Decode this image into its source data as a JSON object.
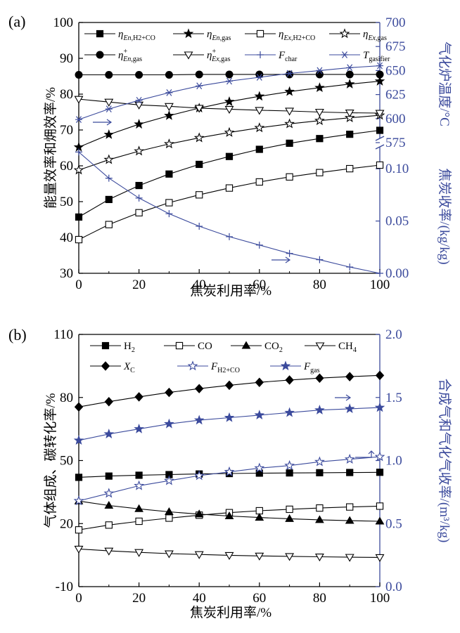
{
  "colors": {
    "black": "#000000",
    "blue": "#3b4a9c"
  },
  "chart_data": [
    {
      "panel": "(a)",
      "type": "line",
      "x": [
        0,
        10,
        20,
        30,
        40,
        50,
        60,
        70,
        80,
        90,
        100
      ],
      "xlabel": "焦炭利用率/%",
      "xlim": [
        0,
        100
      ],
      "x_ticks": [
        "0",
        "20",
        "40",
        "60",
        "80",
        "100"
      ],
      "ylabel": "能量效率和㶲效率/%",
      "ylim": [
        30,
        100
      ],
      "y_ticks": [
        "30",
        "40",
        "50",
        "60",
        "70",
        "80",
        "90",
        "100"
      ],
      "y2_upper_label": "气化炉温度/°C",
      "y2_upper_lim": [
        575,
        700
      ],
      "y2_upper_ticks": [
        "575",
        "600",
        "625",
        "650",
        "675",
        "700"
      ],
      "y2_lower_label": "焦炭收率/(kg/kg)",
      "y2_lower_lim": [
        0,
        0.125
      ],
      "y2_lower_ticks": [
        "0.00",
        "0.05",
        "0.10"
      ],
      "legend": [
        {
          "label": "ηEn,H2+CO",
          "main": "η",
          "sub": "En,H2+CO",
          "sup": "",
          "marker": "square-filled",
          "color": "#000000"
        },
        {
          "label": "ηEn,gas",
          "main": "η",
          "sub": "En,gas",
          "sup": "",
          "marker": "star-filled",
          "color": "#000000"
        },
        {
          "label": "ηEx,H2+CO",
          "main": "η",
          "sub": "Ex,H2+CO",
          "sup": "",
          "marker": "square-open",
          "color": "#000000"
        },
        {
          "label": "ηEx,gas",
          "main": "η",
          "sub": "Ex,gas",
          "sup": "",
          "marker": "star-open",
          "color": "#000000"
        },
        {
          "label": "η+En,gas",
          "main": "η",
          "sub": "En,gas",
          "sup": "+",
          "marker": "circle-filled",
          "color": "#000000"
        },
        {
          "label": "η+Ex,gas",
          "main": "η",
          "sub": "Ex,gas",
          "sup": "+",
          "marker": "triangle-down-open",
          "color": "#000000"
        },
        {
          "label": "Fchar",
          "main": "F",
          "sub": "char",
          "sup": "",
          "marker": "plus",
          "color": "#3b4a9c"
        },
        {
          "label": "Tgasifier",
          "main": "T",
          "sub": "gasifier",
          "sup": "",
          "marker": "asterisk",
          "color": "#3b4a9c"
        }
      ],
      "series": [
        {
          "name": "ηEn,H2+CO",
          "axis": "left",
          "marker": "square-filled",
          "color": "#000000",
          "values": [
            45.7,
            50.6,
            54.5,
            57.7,
            60.4,
            62.6,
            64.6,
            66.3,
            67.6,
            68.8,
            69.9
          ]
        },
        {
          "name": "ηEn,gas",
          "axis": "left",
          "marker": "star-filled",
          "color": "#000000",
          "values": [
            65.2,
            68.7,
            71.6,
            74.0,
            76.1,
            77.9,
            79.4,
            80.7,
            81.8,
            82.8,
            83.6
          ]
        },
        {
          "name": "ηEx,H2+CO",
          "axis": "left",
          "marker": "square-open",
          "color": "#000000",
          "values": [
            39.4,
            43.6,
            46.9,
            49.7,
            51.9,
            53.8,
            55.5,
            56.9,
            58.1,
            59.2,
            60.2
          ]
        },
        {
          "name": "ηEx,gas",
          "axis": "left",
          "marker": "star-open",
          "color": "#000000",
          "values": [
            58.8,
            61.7,
            64.1,
            66.1,
            67.8,
            69.3,
            70.6,
            71.7,
            72.6,
            73.4,
            74.1
          ]
        },
        {
          "name": "η+En,gas",
          "axis": "left",
          "marker": "circle-filled",
          "color": "#000000",
          "values": [
            85.4,
            85.4,
            85.4,
            85.4,
            85.5,
            85.5,
            85.5,
            85.5,
            85.5,
            85.5,
            85.5
          ]
        },
        {
          "name": "η+Ex,gas",
          "axis": "left",
          "marker": "triangle-down-open",
          "color": "#000000",
          "values": [
            78.6,
            77.8,
            77.0,
            76.6,
            76.1,
            75.8,
            75.5,
            75.3,
            75.0,
            74.8,
            74.7
          ]
        },
        {
          "name": "Tgasifier",
          "axis": "right-upper",
          "marker": "asterisk",
          "color": "#3b4a9c",
          "values": [
            599,
            610,
            619,
            627,
            634,
            639,
            643,
            647,
            650,
            653,
            655
          ]
        },
        {
          "name": "Fchar",
          "axis": "right-lower",
          "marker": "plus",
          "color": "#3b4a9c",
          "values": [
            0.116,
            0.091,
            0.072,
            0.057,
            0.045,
            0.035,
            0.027,
            0.019,
            0.013,
            0.006,
            0.0
          ]
        }
      ]
    },
    {
      "panel": "(b)",
      "type": "line",
      "x": [
        0,
        10,
        20,
        30,
        40,
        50,
        60,
        70,
        80,
        90,
        100
      ],
      "xlabel": "焦炭利用率/%",
      "xlim": [
        0,
        100
      ],
      "x_ticks": [
        "0",
        "20",
        "40",
        "60",
        "80",
        "100"
      ],
      "ylabel": "气体组成、碳转化率/%",
      "ylim": [
        -10,
        110
      ],
      "y_ticks": [
        "-10",
        "20",
        "50",
        "80",
        "110"
      ],
      "y2_label": "合成气和气化气收率/(m³/kg)",
      "y2_lim": [
        0.0,
        2.0
      ],
      "y2_ticks": [
        "0.0",
        "0.5",
        "1.0",
        "1.5",
        "2.0"
      ],
      "legend": [
        {
          "label": "H2",
          "main": "H",
          "sub": "2",
          "sup": "",
          "marker": "square-filled",
          "color": "#000000"
        },
        {
          "label": "CO",
          "main": "CO",
          "sub": "",
          "sup": "",
          "marker": "square-open",
          "color": "#000000"
        },
        {
          "label": "CO2",
          "main": "CO",
          "sub": "2",
          "sup": "",
          "marker": "triangle-up-filled",
          "color": "#000000"
        },
        {
          "label": "CH4",
          "main": "CH",
          "sub": "4",
          "sup": "",
          "marker": "triangle-down-open",
          "color": "#000000"
        },
        {
          "label": "XC",
          "main": "X",
          "sub": "C",
          "sup": "",
          "marker": "diamond-filled",
          "color": "#000000"
        },
        {
          "label": "FH2+CO",
          "main": "F",
          "sub": "H2+CO",
          "sup": "",
          "marker": "star-open",
          "color": "#3b4a9c"
        },
        {
          "label": "Fgas",
          "main": "F",
          "sub": "gas",
          "sup": "",
          "marker": "star-filled",
          "color": "#3b4a9c"
        }
      ],
      "series": [
        {
          "name": "H2",
          "axis": "left",
          "marker": "square-filled",
          "color": "#000000",
          "values": [
            42.0,
            42.6,
            43.0,
            43.3,
            43.6,
            43.8,
            44.0,
            44.1,
            44.2,
            44.3,
            44.4
          ]
        },
        {
          "name": "CO",
          "axis": "left",
          "marker": "square-open",
          "color": "#000000",
          "values": [
            17.0,
            19.3,
            21.1,
            22.6,
            24.0,
            25.2,
            26.1,
            26.8,
            27.4,
            27.9,
            28.3
          ]
        },
        {
          "name": "CO2",
          "axis": "left",
          "marker": "triangle-up-filled",
          "color": "#000000",
          "values": [
            30.7,
            28.6,
            27.0,
            25.6,
            24.5,
            23.6,
            22.9,
            22.3,
            21.8,
            21.4,
            21.1
          ]
        },
        {
          "name": "CH4",
          "axis": "left",
          "marker": "triangle-down-open",
          "color": "#000000",
          "values": [
            7.9,
            7.0,
            6.3,
            5.7,
            5.3,
            4.9,
            4.6,
            4.4,
            4.2,
            4.0,
            3.9
          ]
        },
        {
          "name": "XC",
          "axis": "left",
          "marker": "diamond-filled",
          "color": "#000000",
          "values": [
            75.5,
            78.0,
            80.3,
            82.4,
            84.2,
            85.8,
            87.2,
            88.3,
            89.2,
            89.9,
            90.5
          ]
        },
        {
          "name": "Fgas",
          "axis": "right",
          "marker": "star-filled",
          "color": "#3b4a9c",
          "values": [
            1.16,
            1.21,
            1.25,
            1.29,
            1.32,
            1.34,
            1.36,
            1.38,
            1.4,
            1.41,
            1.42
          ]
        },
        {
          "name": "FH2+CO",
          "axis": "right",
          "marker": "star-open",
          "color": "#3b4a9c",
          "values": [
            0.68,
            0.74,
            0.8,
            0.84,
            0.88,
            0.91,
            0.94,
            0.96,
            0.99,
            1.01,
            1.03
          ]
        }
      ]
    }
  ]
}
